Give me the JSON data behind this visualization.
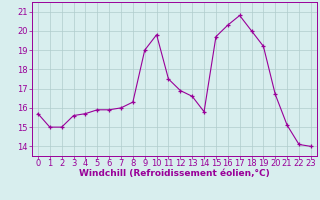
{
  "x": [
    0,
    1,
    2,
    3,
    4,
    5,
    6,
    7,
    8,
    9,
    10,
    11,
    12,
    13,
    14,
    15,
    16,
    17,
    18,
    19,
    20,
    21,
    22,
    23
  ],
  "y": [
    15.7,
    15.0,
    15.0,
    15.6,
    15.7,
    15.9,
    15.9,
    16.0,
    16.3,
    19.0,
    19.8,
    17.5,
    16.9,
    16.6,
    15.8,
    19.7,
    20.3,
    20.8,
    20.0,
    19.2,
    16.7,
    15.1,
    14.1,
    14.0
  ],
  "line_color": "#990099",
  "marker": "+",
  "bg_color": "#d8eeee",
  "grid_color": "#b0cccc",
  "xlabel": "Windchill (Refroidissement éolien,°C)",
  "xlabel_color": "#990099",
  "ylim": [
    13.5,
    21.5
  ],
  "xlim": [
    -0.5,
    23.5
  ],
  "yticks": [
    14,
    15,
    16,
    17,
    18,
    19,
    20,
    21
  ],
  "xticks": [
    0,
    1,
    2,
    3,
    4,
    5,
    6,
    7,
    8,
    9,
    10,
    11,
    12,
    13,
    14,
    15,
    16,
    17,
    18,
    19,
    20,
    21,
    22,
    23
  ],
  "tick_color": "#990099",
  "spine_color": "#990099",
  "font_size_label": 6.5,
  "font_size_tick": 6.0
}
